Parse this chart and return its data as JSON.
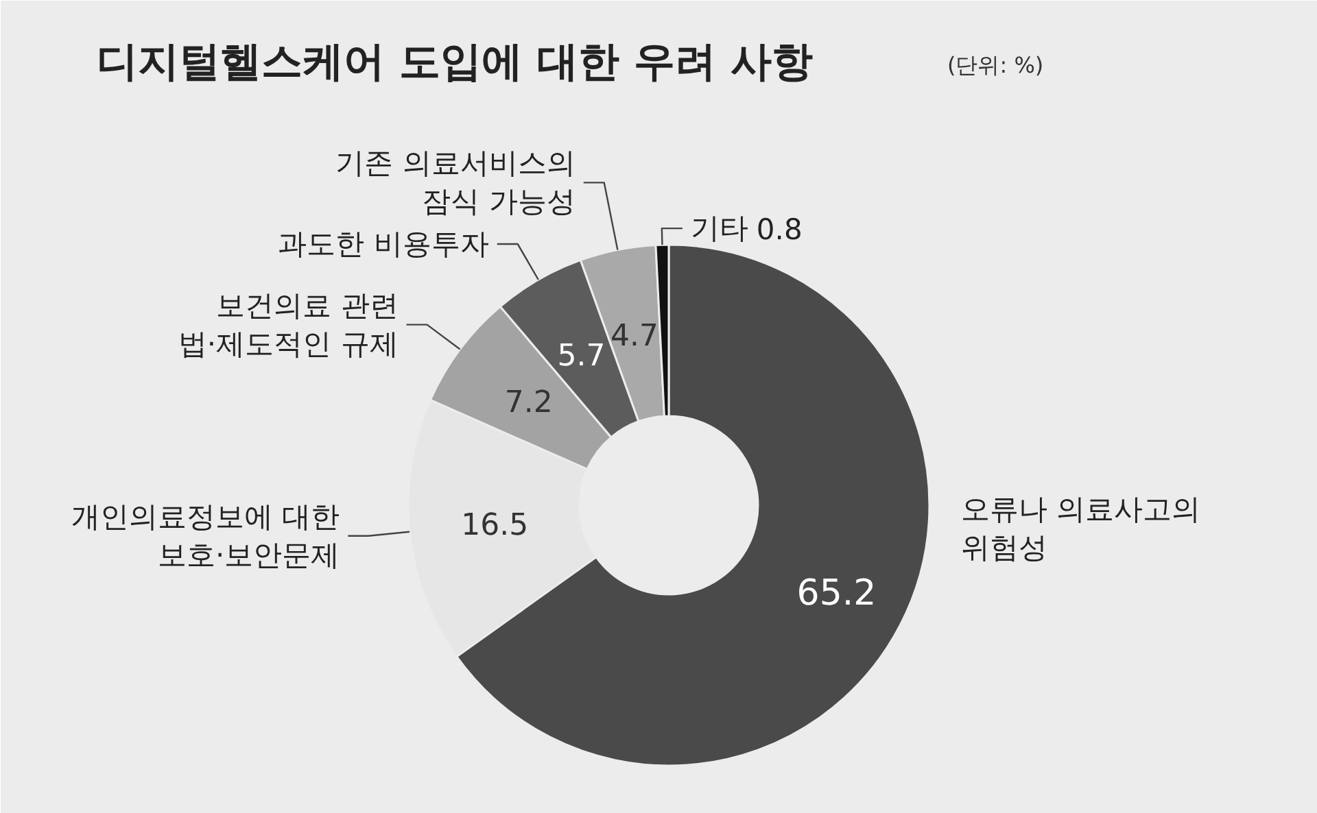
{
  "chart_data": {
    "type": "donut",
    "title": "디지털헬스케어 도입에 대한 우려 사항",
    "subtitle": "(단위: %)",
    "categories": [
      "오류나 의료사고의\n위험성",
      "개인의료정보에 대한\n보호·보안문제",
      "보건의료 관련\n법·제도적인 규제",
      "과도한 비용투자",
      "기존 의료서비스의\n잠식 가능성",
      "기타"
    ],
    "values": [
      65.2,
      16.5,
      7.2,
      5.7,
      4.7,
      0.8
    ],
    "colors": [
      "#4a4a4a",
      "#e6e6e6",
      "#a3a3a3",
      "#5c5c5c",
      "#a9a9a9",
      "#111111"
    ],
    "data_labels": true
  }
}
